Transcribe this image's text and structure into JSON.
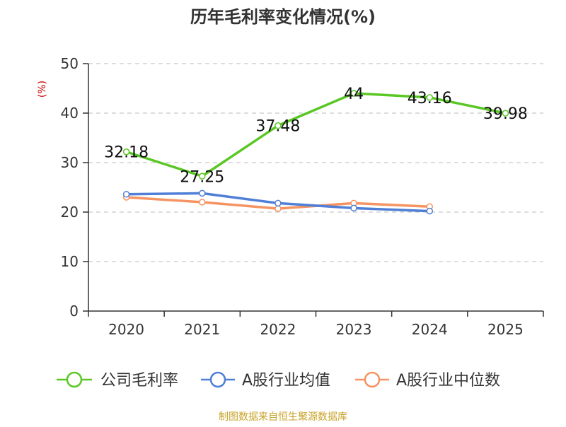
{
  "chart_data": {
    "type": "line",
    "title": "历年毛利率变化情况(%)",
    "xlabel": "",
    "ylabel": "(%)",
    "categories": [
      "2020",
      "2021",
      "2022",
      "2023",
      "2024",
      "2025"
    ],
    "ylim": [
      0,
      50
    ],
    "yticks": [
      0,
      10,
      20,
      30,
      40,
      50
    ],
    "grid": true,
    "legend_position": "bottom",
    "series": [
      {
        "name": "公司毛利率",
        "color": "#5ac725",
        "values": [
          32.18,
          27.25,
          37.48,
          44,
          43.16,
          39.98
        ],
        "labels": [
          "32.18",
          "27.25",
          "37.48",
          "44",
          "43.16",
          "39.98"
        ]
      },
      {
        "name": "A股行业均值",
        "color": "#4f7fd6",
        "values": [
          23.6,
          23.8,
          21.8,
          20.8,
          20.2,
          null
        ]
      },
      {
        "name": "A股行业中位数",
        "color": "#f59462",
        "values": [
          23.0,
          22.0,
          20.7,
          21.8,
          21.1,
          null
        ]
      }
    ],
    "source_note": "制图数据来自恒生聚源数据库"
  },
  "colors": {
    "title": "#333333",
    "axis": "#333333",
    "grid": "#bbbbbb",
    "ylabel": "#cc0000",
    "source_note": "#c9a227"
  }
}
